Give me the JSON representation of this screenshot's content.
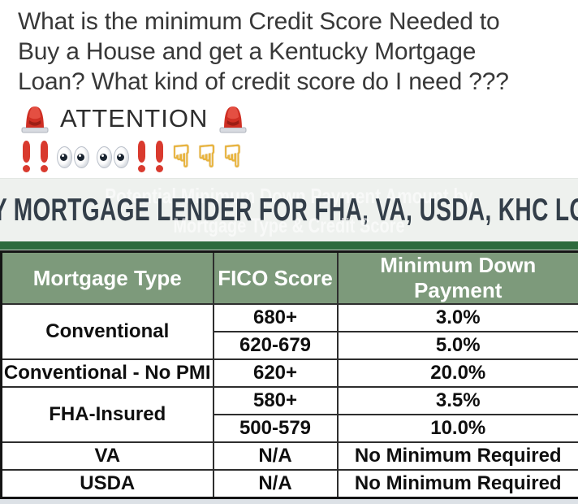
{
  "post": {
    "title_lines": [
      "What is the minimum Credit Score Needed to",
      "Buy a House and get a Kentucky Mortgage",
      "Loan? What kind of credit score do I need ???"
    ],
    "attention": {
      "label": "ATTENTION"
    },
    "emoji_row": {
      "pointer_glyph": "☟"
    }
  },
  "banner": {
    "headline": "UCKY MORTGAGE LENDER FOR FHA, VA, USDA, KHC LOANS",
    "watermark_line1": "Potential Minimum Down Payment Amount by",
    "watermark_line2": "Mortgage Type & Credit Score"
  },
  "table": {
    "columns": [
      "Mortgage Type",
      "FICO Score",
      "Minimum Down Payment"
    ],
    "rows": [
      {
        "mortgage_type": "Conventional",
        "type_rowspan": 2,
        "fico_score": "680+",
        "min_down_payment": "3.0%"
      },
      {
        "fico_score": "620-679",
        "min_down_payment": "5.0%"
      },
      {
        "mortgage_type": "Conventional - No PMI",
        "type_rowspan": 1,
        "fico_score": "620+",
        "min_down_payment": "20.0%"
      },
      {
        "mortgage_type": "FHA-Insured",
        "type_rowspan": 2,
        "fico_score": "580+",
        "min_down_payment": "3.5%"
      },
      {
        "fico_score": "500-579",
        "min_down_payment": "10.0%"
      },
      {
        "mortgage_type": "VA",
        "type_rowspan": 1,
        "fico_score": "N/A",
        "min_down_payment": "No Minimum Required"
      },
      {
        "mortgage_type": "USDA",
        "type_rowspan": 1,
        "fico_score": "N/A",
        "min_down_payment": "No Minimum Required"
      }
    ]
  },
  "colors": {
    "header_green": "#7d9a7b",
    "top_bar_green": "#2d6b3d",
    "banner_bg": "#eef1ee",
    "banner_text": "#333e49",
    "exclamation_red": "#d93a2e",
    "pointer_gold": "#e9b43c"
  }
}
